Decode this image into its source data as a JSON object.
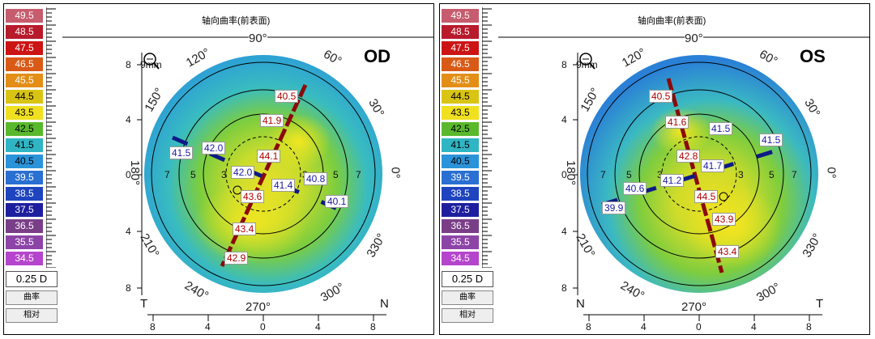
{
  "legend": {
    "values": [
      "49.5",
      "48.5",
      "47.5",
      "46.5",
      "45.5",
      "44.5",
      "43.5",
      "42.5",
      "41.5",
      "40.5",
      "39.5",
      "38.5",
      "37.5",
      "36.5",
      "35.5",
      "34.5"
    ],
    "colors": [
      "#c65c6e",
      "#b81b2c",
      "#cc1414",
      "#d95a16",
      "#e38e17",
      "#d9c414",
      "#f0e020",
      "#59b82c",
      "#2fb5c3",
      "#2a93d9",
      "#2a6fd2",
      "#1f44bf",
      "#1e1f9e",
      "#7a3e88",
      "#8d44a7",
      "#b545cc"
    ],
    "step": "0.25 D",
    "mode": "曲率",
    "ref": "相对"
  },
  "panels": [
    {
      "id": "od",
      "title": "轴向曲率(前表面)",
      "eye": "OD",
      "zoom": "9mm",
      "top_angle": "90°",
      "bottom_angle": "270°",
      "angles": [
        "120°",
        "60°",
        "150°",
        "30°",
        "180°",
        "0°",
        "210°",
        "330°",
        "240°",
        "300°"
      ],
      "left_side": "T",
      "right_side": "N",
      "y_ticks": [
        "8",
        "4",
        "0",
        "4",
        "8"
      ],
      "x_ticks": [
        "8",
        "4",
        "0",
        "4",
        "8"
      ],
      "rings": [
        "7",
        "5",
        "3",
        "3",
        "5",
        "7"
      ],
      "steep_values": [
        "40.5",
        "41.9",
        "44.1",
        "43.6",
        "43.4",
        "42.9"
      ],
      "flat_values": [
        "41.5",
        "42.0",
        "42.0",
        "41.4",
        "40.8",
        "40.1"
      ]
    },
    {
      "id": "os",
      "title": "轴向曲率(前表面)",
      "eye": "OS",
      "zoom": "9mm",
      "top_angle": "90°",
      "bottom_angle": "270°",
      "angles": [
        "120°",
        "60°",
        "150°",
        "30°",
        "180°",
        "0°",
        "210°",
        "330°",
        "240°",
        "300°"
      ],
      "left_side": "N",
      "right_side": "T",
      "y_ticks": [
        "8",
        "4",
        "0",
        "4",
        "8"
      ],
      "x_ticks": [
        "8",
        "4",
        "0",
        "4",
        "8"
      ],
      "rings": [
        "7",
        "5",
        "3",
        "3",
        "5",
        "7"
      ],
      "steep_values": [
        "40.5",
        "41.6",
        "42.8",
        "44.5",
        "43.9",
        "43.4"
      ],
      "flat_values": [
        "41.5",
        "41.5",
        "41.7",
        "41.2",
        "40.6",
        "39.9"
      ]
    }
  ]
}
